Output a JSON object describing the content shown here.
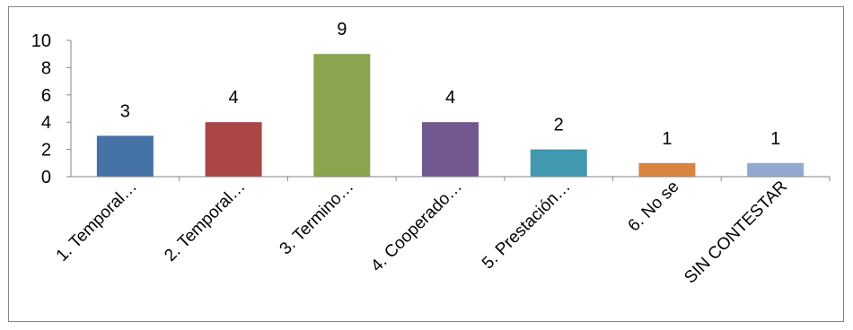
{
  "chart_data": {
    "type": "bar",
    "title": "",
    "xlabel": "",
    "ylabel": "",
    "ylim": [
      0,
      10
    ],
    "y_ticks": [
      0,
      2,
      4,
      6,
      8,
      10
    ],
    "grid": false,
    "legend": "none",
    "categories": [
      "1. Temporal…",
      "2. Temporal…",
      "3. Termino…",
      "4. Cooperado…",
      "5. Prestación…",
      "6. No se",
      "SIN CONTESTAR"
    ],
    "values": [
      3,
      4,
      9,
      4,
      2,
      1,
      1
    ],
    "colors": [
      "#4572A7",
      "#AA4643",
      "#89A54E",
      "#71588F",
      "#4198AF",
      "#DB843D",
      "#93A9CF"
    ]
  }
}
